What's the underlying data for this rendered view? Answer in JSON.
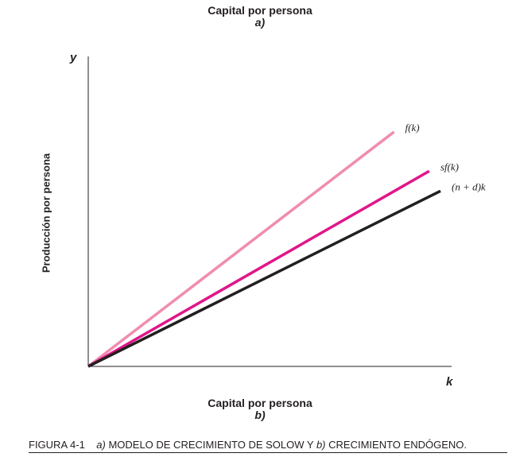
{
  "header": {
    "title": "Capital por persona",
    "subtitle": "a)"
  },
  "footer": {
    "title": "Capital por persona",
    "subtitle": "b)"
  },
  "caption": {
    "figure": "FIGURA 4-1",
    "part_a_letter": "a)",
    "part_a_text": "MODELO DE CRECIMIENTO DE SOLOW Y",
    "part_b_letter": "b)",
    "part_b_text": "CRECIMIENTO ENDÓGENO."
  },
  "chart_data": {
    "type": "line",
    "ylabel": "Producción por persona",
    "y_axis_letter": "y",
    "x_axis_letter": "k",
    "xlim": [
      0,
      100
    ],
    "ylim": [
      0,
      100
    ],
    "grid": false,
    "series": [
      {
        "name": "f(k)",
        "color": "#f08cb0",
        "points": [
          [
            0,
            0
          ],
          [
            86.8,
            87.3
          ]
        ]
      },
      {
        "name": "sf(k)",
        "color": "#e0168a",
        "points": [
          [
            0,
            0
          ],
          [
            96.8,
            72.7
          ]
        ]
      },
      {
        "name": "(n + d)k",
        "color": "#231f20",
        "points": [
          [
            0,
            0
          ],
          [
            100,
            65.3
          ]
        ]
      }
    ]
  }
}
